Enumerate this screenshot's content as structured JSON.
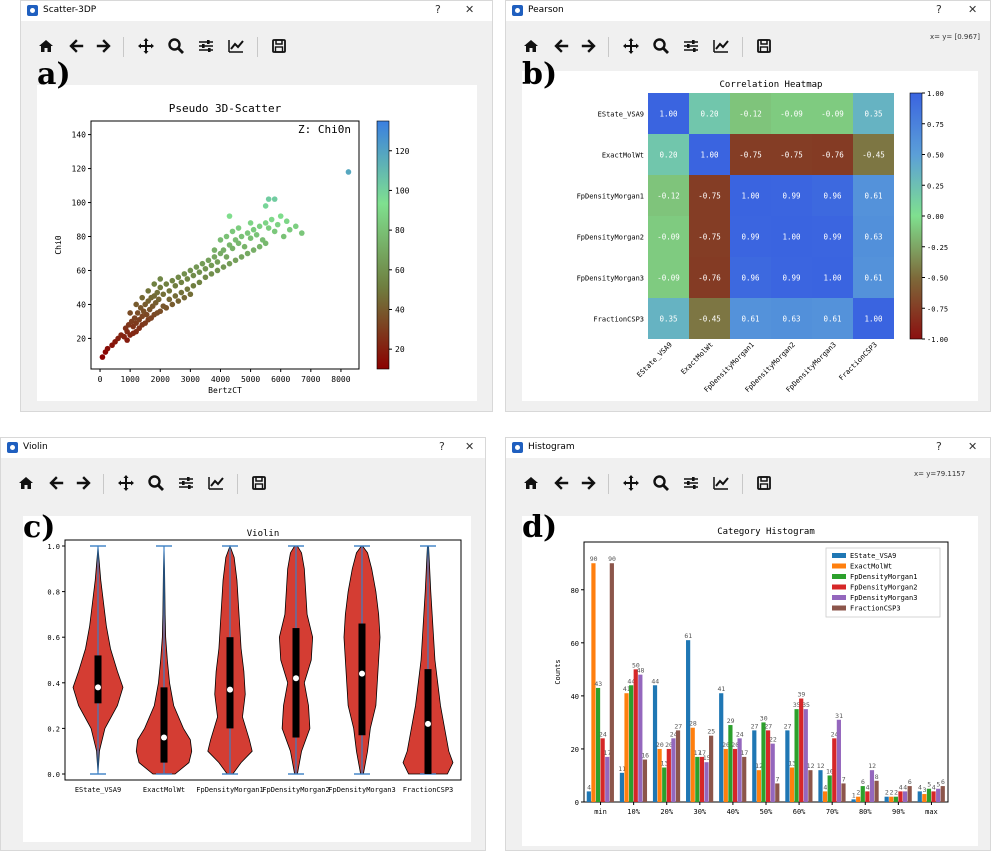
{
  "windows": [
    {
      "title": "Scatter-3DP",
      "label": "a)",
      "coord": ""
    },
    {
      "title": "Pearson",
      "label": "b)",
      "coord": "x= y= [0.967]"
    },
    {
      "title": "Violin",
      "label": "c)",
      "coord": ""
    },
    {
      "title": "Histogram",
      "label": "d)",
      "coord": "x= y=79.1157"
    }
  ],
  "window_buttons": {
    "help": "?",
    "close": "✕"
  },
  "toolbar_icons": [
    "home-icon",
    "back-icon",
    "forward-icon",
    "pan-icon",
    "zoom-icon",
    "configure-icon",
    "edit-curve-icon",
    "save-icon"
  ],
  "chart_data": [
    {
      "type": "scatter",
      "title": "Pseudo 3D-Scatter",
      "xlabel": "BertzCT",
      "ylabel": "Chi0",
      "annotation": "Z: Chi0n",
      "xlim": [
        -300,
        8600
      ],
      "ylim": [
        2,
        148
      ],
      "xticks": [
        0,
        1000,
        2000,
        3000,
        4000,
        5000,
        6000,
        7000,
        8000
      ],
      "yticks": [
        20,
        40,
        60,
        80,
        100,
        120,
        140
      ],
      "colorbar": {
        "ticks": [
          20,
          40,
          60,
          80,
          100,
          120
        ],
        "range": [
          10,
          135
        ],
        "colors": [
          "#8b0000",
          "#6f7f40",
          "#7fe08f",
          "#3a7fe0"
        ]
      },
      "points": [
        [
          80,
          9
        ],
        [
          180,
          12
        ],
        [
          250,
          14
        ],
        [
          400,
          16
        ],
        [
          500,
          18
        ],
        [
          600,
          20
        ],
        [
          700,
          22
        ],
        [
          800,
          21
        ],
        [
          850,
          26
        ],
        [
          900,
          24
        ],
        [
          950,
          28
        ],
        [
          1000,
          22
        ],
        [
          1050,
          30
        ],
        [
          1100,
          27
        ],
        [
          1150,
          32
        ],
        [
          1200,
          29
        ],
        [
          1250,
          35
        ],
        [
          1300,
          31
        ],
        [
          1350,
          38
        ],
        [
          1400,
          33
        ],
        [
          1450,
          36
        ],
        [
          1500,
          40
        ],
        [
          1550,
          34
        ],
        [
          1600,
          42
        ],
        [
          1650,
          37
        ],
        [
          1700,
          44
        ],
        [
          1750,
          39
        ],
        [
          1800,
          45
        ],
        [
          1850,
          41
        ],
        [
          1900,
          47
        ],
        [
          1950,
          43
        ],
        [
          2000,
          50
        ],
        [
          2100,
          46
        ],
        [
          2200,
          52
        ],
        [
          2300,
          48
        ],
        [
          2400,
          54
        ],
        [
          2500,
          51
        ],
        [
          2600,
          56
        ],
        [
          2700,
          53
        ],
        [
          2800,
          58
        ],
        [
          2900,
          55
        ],
        [
          3000,
          60
        ],
        [
          3100,
          57
        ],
        [
          3200,
          62
        ],
        [
          3300,
          59
        ],
        [
          3400,
          64
        ],
        [
          3500,
          61
        ],
        [
          3600,
          66
        ],
        [
          3700,
          63
        ],
        [
          3800,
          68
        ],
        [
          3900,
          65
        ],
        [
          4000,
          70
        ],
        [
          4100,
          72
        ],
        [
          4200,
          68
        ],
        [
          4300,
          75
        ],
        [
          4400,
          73
        ],
        [
          4500,
          78
        ],
        [
          4600,
          76
        ],
        [
          4700,
          80
        ],
        [
          4800,
          74
        ],
        [
          4900,
          82
        ],
        [
          5000,
          79
        ],
        [
          5100,
          84
        ],
        [
          5200,
          81
        ],
        [
          5300,
          86
        ],
        [
          5400,
          78
        ],
        [
          5500,
          88
        ],
        [
          5600,
          85
        ],
        [
          5700,
          90
        ],
        [
          5800,
          83
        ],
        [
          5900,
          87
        ],
        [
          6000,
          92
        ],
        [
          6100,
          80
        ],
        [
          6200,
          89
        ],
        [
          6300,
          84
        ],
        [
          6500,
          86
        ],
        [
          6700,
          82
        ],
        [
          4300,
          92
        ],
        [
          5600,
          102
        ],
        [
          5800,
          102
        ],
        [
          5500,
          98
        ],
        [
          8250,
          118
        ],
        [
          1200,
          24
        ],
        [
          1400,
          28
        ],
        [
          1600,
          31
        ],
        [
          1800,
          34
        ],
        [
          2000,
          36
        ],
        [
          2200,
          38
        ],
        [
          2400,
          40
        ],
        [
          2600,
          42
        ],
        [
          2800,
          44
        ],
        [
          3000,
          46
        ],
        [
          900,
          19
        ],
        [
          1100,
          23
        ],
        [
          1300,
          26
        ],
        [
          1500,
          29
        ],
        [
          1700,
          32
        ],
        [
          1900,
          35
        ],
        [
          2100,
          39
        ],
        [
          2300,
          43
        ],
        [
          2500,
          45
        ],
        [
          2700,
          47
        ],
        [
          2900,
          49
        ],
        [
          3100,
          51
        ],
        [
          3300,
          53
        ],
        [
          3500,
          56
        ],
        [
          3700,
          58
        ],
        [
          3900,
          60
        ],
        [
          4100,
          62
        ],
        [
          4300,
          64
        ],
        [
          4500,
          66
        ],
        [
          4700,
          68
        ],
        [
          4900,
          70
        ],
        [
          5100,
          72
        ],
        [
          5300,
          74
        ],
        [
          5500,
          76
        ],
        [
          1000,
          35
        ],
        [
          1200,
          40
        ],
        [
          1400,
          44
        ],
        [
          1600,
          48
        ],
        [
          1800,
          52
        ],
        [
          2000,
          55
        ],
        [
          3800,
          72
        ],
        [
          4000,
          78
        ],
        [
          4200,
          80
        ],
        [
          4400,
          83
        ],
        [
          4600,
          85
        ],
        [
          5000,
          88
        ]
      ]
    },
    {
      "type": "heatmap",
      "title": "Correlation Heatmap",
      "labels": [
        "EState_VSA9",
        "ExactMolWt",
        "FpDensityMorgan1",
        "FpDensityMorgan2",
        "FpDensityMorgan3",
        "FractionCSP3"
      ],
      "matrix": [
        [
          "1.00",
          "0.20",
          "-0.12",
          "-0.09",
          "-0.09",
          "0.35"
        ],
        [
          "0.20",
          "1.00",
          "-0.75",
          "-0.75",
          "-0.76",
          "-0.45"
        ],
        [
          "-0.12",
          "-0.75",
          "1.00",
          "0.99",
          "0.96",
          "0.61"
        ],
        [
          "-0.09",
          "-0.75",
          "0.99",
          "1.00",
          "0.99",
          "0.63"
        ],
        [
          "-0.09",
          "-0.76",
          "0.96",
          "0.99",
          "1.00",
          "0.61"
        ],
        [
          "0.35",
          "-0.45",
          "0.61",
          "0.63",
          "0.61",
          "1.00"
        ]
      ],
      "colorbar": {
        "ticks": [
          "1.00",
          "0.75",
          "0.50",
          "0.25",
          "0.00",
          "-0.25",
          "-0.50",
          "-0.75",
          "-1.00"
        ],
        "range": [
          -1,
          1
        ]
      }
    },
    {
      "type": "violin",
      "title": "Violin",
      "categories": [
        "EState_VSA9",
        "ExactMolWt",
        "FpDensityMorgan1",
        "FpDensityMorgan2",
        "FpDensityMorgan3",
        "FractionCSP3"
      ],
      "yticks": [
        "0.0",
        "0.2",
        "0.4",
        "0.6",
        "0.8",
        "1.0"
      ],
      "ylim": [
        0,
        1
      ],
      "medians": [
        0.38,
        0.16,
        0.37,
        0.42,
        0.44,
        0.22
      ],
      "q1": [
        0.31,
        0.05,
        0.2,
        0.16,
        0.17,
        0.0
      ],
      "q3": [
        0.52,
        0.38,
        0.6,
        0.64,
        0.66,
        0.46
      ],
      "fill": "#d43d33"
    },
    {
      "type": "bar",
      "title": "Category Histogram",
      "ylabel": "Counts",
      "categories": [
        "min",
        "10%",
        "20%",
        "30%",
        "40%",
        "50%",
        "60%",
        "70%",
        "80%",
        "90%",
        "max"
      ],
      "yticks": [
        0,
        20,
        40,
        60,
        80
      ],
      "ylim": [
        0,
        98
      ],
      "series": [
        {
          "name": "EState_VSA9",
          "color": "#1f77b4",
          "values": [
            4,
            11,
            44,
            61,
            41,
            27,
            27,
            12,
            1,
            2,
            4
          ]
        },
        {
          "name": "ExactMolWt",
          "color": "#ff7f0e",
          "values": [
            90,
            41,
            20,
            28,
            20,
            12,
            13,
            4,
            2,
            2,
            3
          ]
        },
        {
          "name": "FpDensityMorgan1",
          "color": "#2ca02c",
          "values": [
            43,
            44,
            13,
            17,
            29,
            30,
            35,
            10,
            6,
            2,
            5
          ]
        },
        {
          "name": "FpDensityMorgan2",
          "color": "#d62728",
          "values": [
            24,
            50,
            20,
            17,
            20,
            27,
            39,
            24,
            4,
            4,
            4
          ]
        },
        {
          "name": "FpDensityMorgan3",
          "color": "#9467bd",
          "values": [
            17,
            48,
            24,
            15,
            24,
            22,
            35,
            31,
            12,
            4,
            5
          ]
        },
        {
          "name": "FractionCSP3",
          "color": "#8c564b",
          "values": [
            90,
            16,
            27,
            25,
            17,
            7,
            12,
            7,
            8,
            6,
            6
          ]
        }
      ]
    }
  ]
}
